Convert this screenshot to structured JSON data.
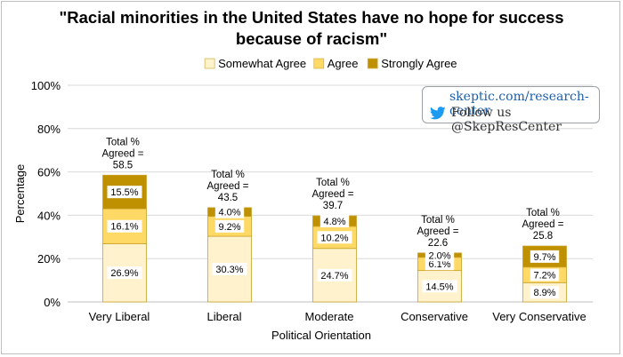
{
  "chart_data": {
    "type": "bar",
    "stacked": true,
    "title": "\"Racial minorities in the United States have no hope for success because of racism\"",
    "xlabel": "Political Orientation",
    "ylabel": "Percentage",
    "ylim": [
      0,
      100
    ],
    "yticks": [
      "0%",
      "20%",
      "40%",
      "60%",
      "80%",
      "100%"
    ],
    "grid": true,
    "legend_position": "top",
    "categories": [
      "Very Liberal",
      "Liberal",
      "Moderate",
      "Conservative",
      "Very Conservative"
    ],
    "series": [
      {
        "name": "Somewhat Agree",
        "color": "#fff2cc",
        "values": [
          26.9,
          30.3,
          24.7,
          14.5,
          8.9
        ],
        "labels": [
          "26.9%",
          "30.3%",
          "24.7%",
          "14.5%",
          "8.9%"
        ]
      },
      {
        "name": "Agree",
        "color": "#ffd966",
        "values": [
          16.1,
          9.2,
          10.2,
          6.1,
          7.2
        ],
        "labels": [
          "16.1%",
          "9.2%",
          "10.2%",
          "6.1%",
          "7.2%"
        ]
      },
      {
        "name": "Strongly Agree",
        "color": "#bf9000",
        "values": [
          15.5,
          4.0,
          4.8,
          2.0,
          9.7
        ],
        "labels": [
          "15.5%",
          "4.0%",
          "4.8%",
          "2.0%",
          "9.7%"
        ]
      }
    ],
    "totals": [
      58.5,
      43.5,
      39.7,
      22.6,
      25.8
    ],
    "total_labels": [
      [
        "Total %",
        "Agreed =",
        "58.5"
      ],
      [
        "Total %",
        "Agreed =",
        "43.5"
      ],
      [
        "Total %",
        "Agreed =",
        "39.7"
      ],
      [
        "Total %",
        "Agreed =",
        "22.6"
      ],
      [
        "Total %",
        "Agreed =",
        "25.8"
      ]
    ]
  },
  "badge": {
    "url": "skeptic.com/research-center",
    "follow": "Follow us @SkepResCenter",
    "icon": "twitter-bird-icon",
    "color": "#1d9bf0"
  }
}
